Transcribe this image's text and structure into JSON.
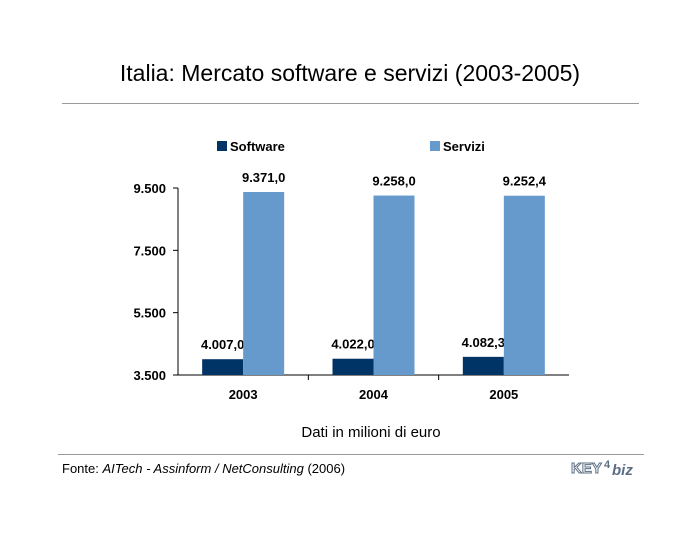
{
  "page": {
    "note": "Dati in milioni di euro",
    "source": {
      "prefix": "Fonte: ",
      "org1": "AITech",
      "sep1": " - ",
      "org2": "Assinform",
      "sep2": " / ",
      "org3": "NetConsulting",
      "year": " (2006)"
    },
    "logo": {
      "text_a": "KEY",
      "text_b": "4",
      "text_c": "biz",
      "color": "#5b6e84"
    }
  },
  "chart_data": {
    "type": "bar",
    "title": "Italia: Mercato software e servizi (2003-2005)",
    "categories": [
      "2003",
      "2004",
      "2005"
    ],
    "series": [
      {
        "name": "Software",
        "color": "#003366",
        "values": [
          4007.0,
          4022.0,
          4082.3
        ],
        "labels": [
          "4.007,0",
          "4.022,0",
          "4.082,3"
        ]
      },
      {
        "name": "Servizi",
        "color": "#6699cc",
        "values": [
          9371.0,
          9258.0,
          9252.4
        ],
        "labels": [
          "9.371,0",
          "9.258,0",
          "9.252,4"
        ]
      }
    ],
    "y_ticks": [
      {
        "value": 3500,
        "label": "3.500"
      },
      {
        "value": 5500,
        "label": "5.500"
      },
      {
        "value": 7500,
        "label": "7.500"
      },
      {
        "value": 9500,
        "label": "9.500"
      }
    ],
    "ylim": [
      3500,
      9500
    ],
    "grid": false,
    "legend_position": "top"
  }
}
